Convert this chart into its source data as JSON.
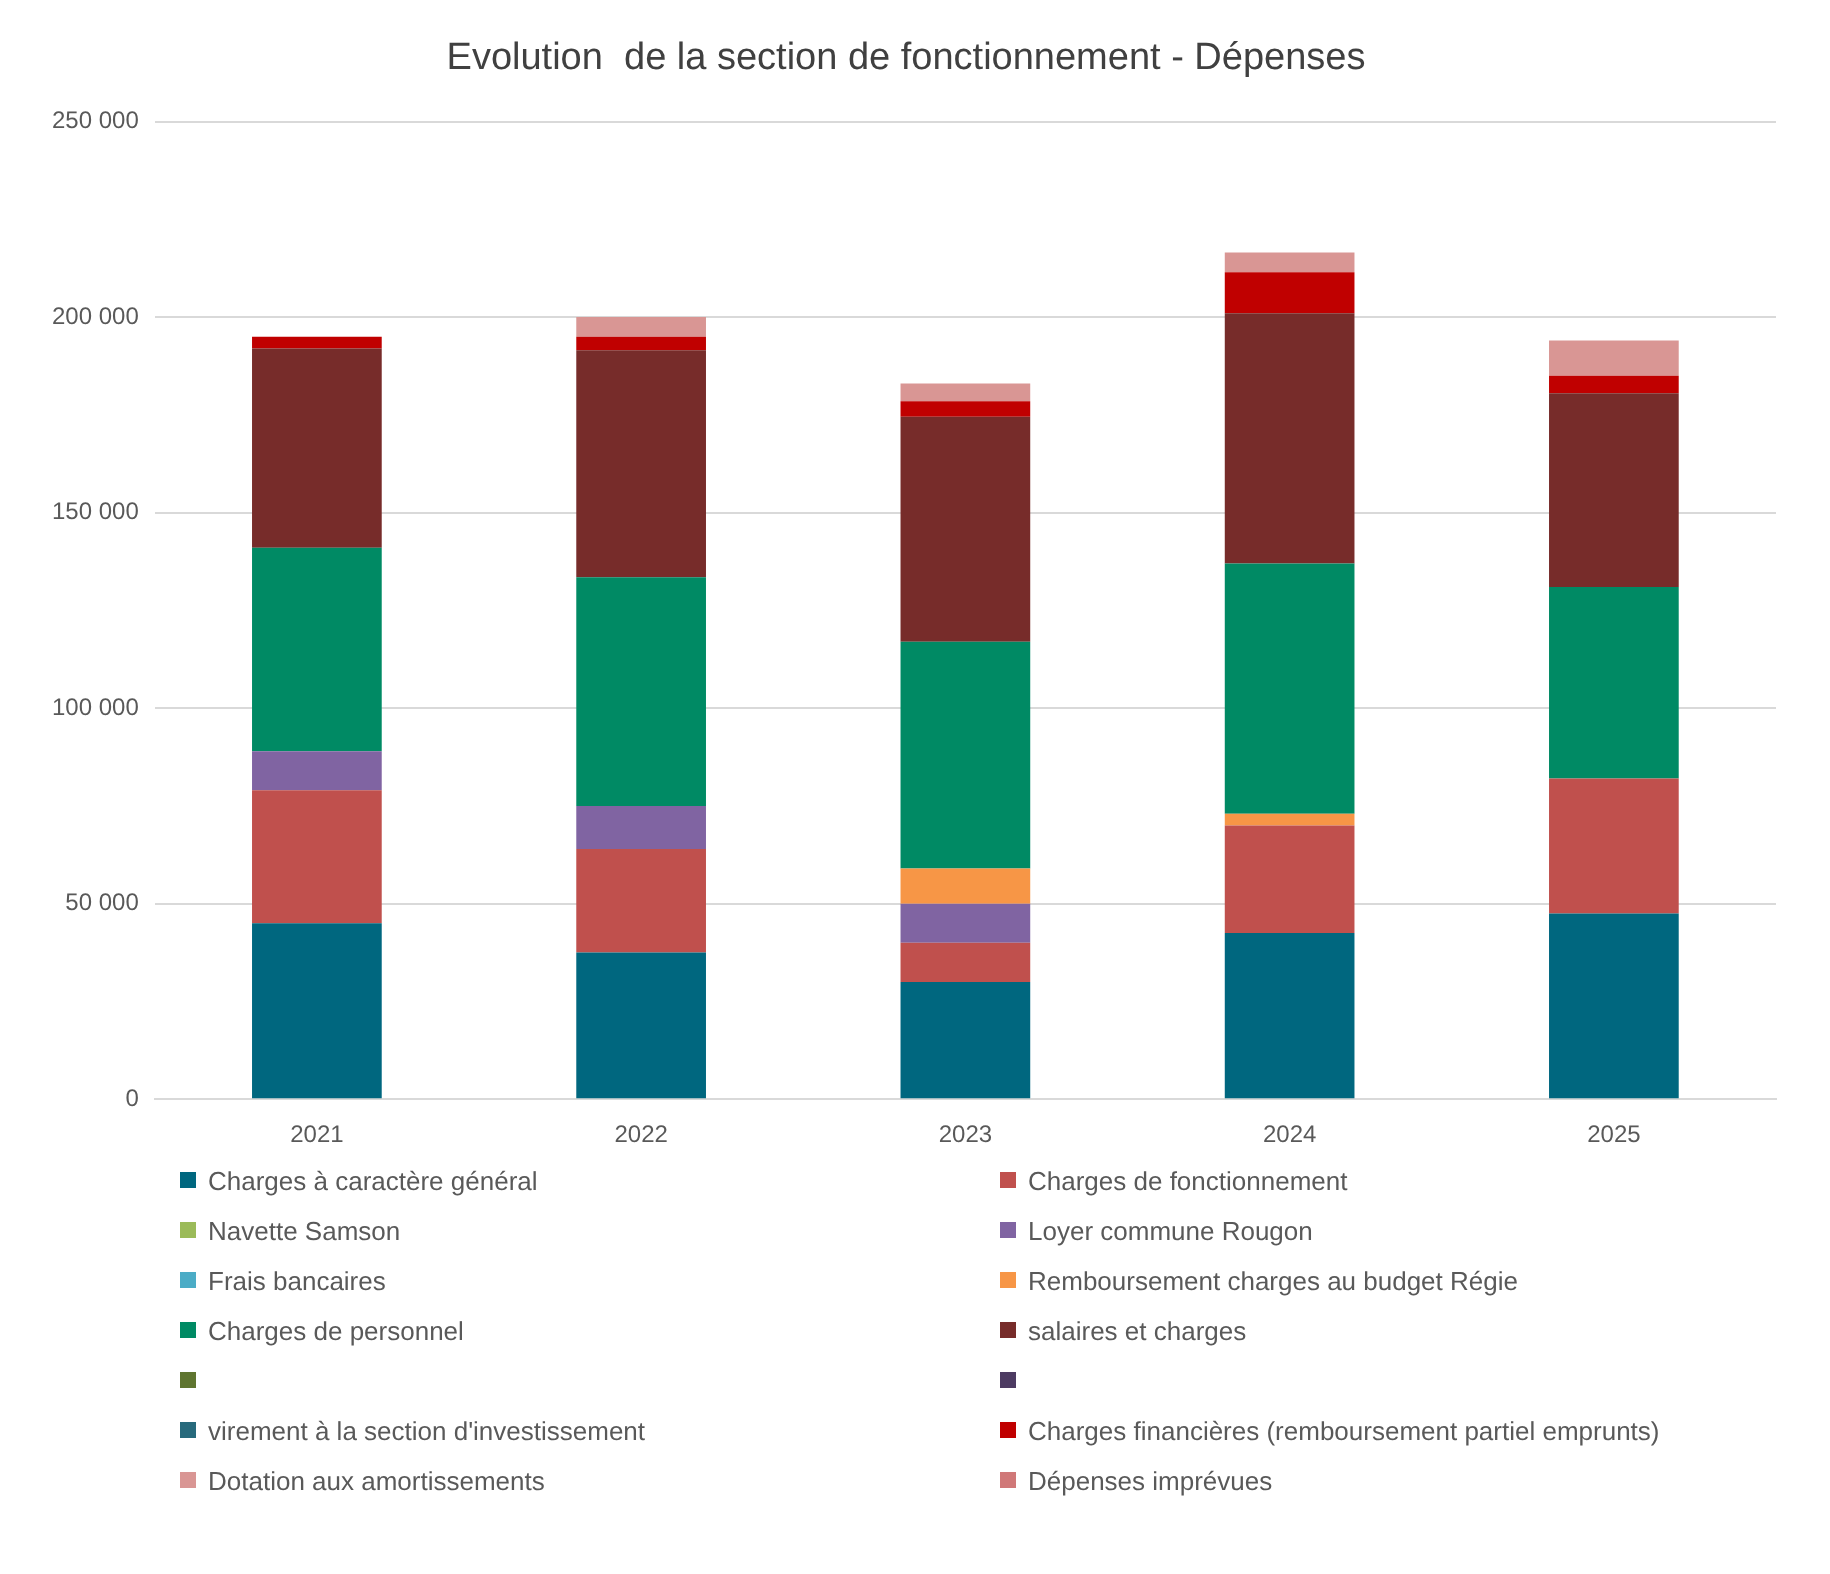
{
  "chart_data": {
    "type": "bar",
    "title": "Evolution  de la section de fonctionnement - Dépenses",
    "categories": [
      "2021",
      "2022",
      "2023",
      "2024",
      "2025"
    ],
    "stacked": true,
    "ylim": [
      0,
      250000
    ],
    "yticks": [
      {
        "value": 0,
        "label": "0"
      },
      {
        "value": 50000,
        "label": "50 000"
      },
      {
        "value": 100000,
        "label": "100 000"
      },
      {
        "value": 150000,
        "label": "150 000"
      },
      {
        "value": 200000,
        "label": "200 000"
      },
      {
        "value": 250000,
        "label": "250 000"
      }
    ],
    "grid": "y",
    "legend": "bottom",
    "series": [
      {
        "name": "Charges à caractère général",
        "color": "#00677f",
        "values": [
          45000,
          37500,
          30000,
          42500,
          47500
        ]
      },
      {
        "name": "Charges de fonctionnement",
        "color": "#c0504d",
        "values": [
          34000,
          26500,
          10000,
          27500,
          34500
        ]
      },
      {
        "name": "Navette Samson",
        "color": "#9bbb59",
        "values": [
          null,
          null,
          null,
          null,
          null
        ]
      },
      {
        "name": "Loyer commune Rougon",
        "color": "#8064a2",
        "values": [
          10000,
          11000,
          10000,
          null,
          null
        ]
      },
      {
        "name": "Frais bancaires",
        "color": "#4bacc6",
        "values": [
          null,
          null,
          null,
          null,
          null
        ]
      },
      {
        "name": "Remboursement charges au budget Régie",
        "color": "#f79646",
        "values": [
          null,
          null,
          9000,
          3000,
          null
        ]
      },
      {
        "name": "Charges de personnel",
        "color": "#008a64",
        "values": [
          52000,
          58500,
          58000,
          64000,
          49000
        ]
      },
      {
        "name": "salaires et charges",
        "color": "#772c2a",
        "values": [
          51000,
          58000,
          57500,
          64000,
          49500
        ]
      },
      {
        "color": "#5f7530",
        "values": [
          null,
          null,
          null,
          null,
          null
        ]
      },
      {
        "color": "#4d3b62",
        "values": [
          null,
          null,
          null,
          null,
          null
        ]
      },
      {
        "name": "virement à la section d'investissement",
        "color": "#276a7c",
        "values": [
          null,
          null,
          null,
          null,
          null
        ]
      },
      {
        "name": "Charges financières (remboursement partiel emprunts)",
        "color": "#c00000",
        "values": [
          3000,
          3500,
          4000,
          10500,
          4500
        ]
      },
      {
        "name": "Dotation aux amortissements",
        "color": "#d99694",
        "values": [
          null,
          5000,
          4500,
          5000,
          9000
        ]
      },
      {
        "name": "Dépenses imprévues",
        "color": "#d07878",
        "values": [
          null,
          null,
          null,
          null,
          null
        ]
      }
    ]
  }
}
